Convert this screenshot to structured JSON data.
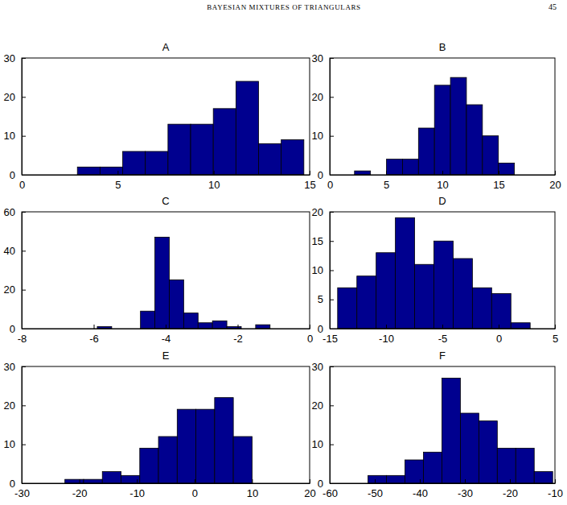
{
  "header": {
    "title": "BAYESIAN MIXTURES OF TRIANGULARS",
    "page": 45
  },
  "chart_data": [
    {
      "type": "histogram",
      "title": "A",
      "color": "#00008f",
      "bins": [
        2.9,
        4.08,
        5.26,
        6.44,
        7.62,
        8.8,
        9.98,
        11.16,
        12.34,
        13.52,
        14.7
      ],
      "counts": [
        2,
        2,
        6,
        6,
        13,
        13,
        17,
        24,
        8,
        9
      ],
      "xlim": [
        0,
        15
      ],
      "xticks": [
        0,
        5,
        10,
        15
      ],
      "ylim": [
        0,
        30
      ],
      "yticks": [
        0,
        10,
        20,
        30
      ]
    },
    {
      "type": "histogram",
      "title": "B",
      "color": "#00008f",
      "bins": [
        2.2,
        3.62,
        5.04,
        6.46,
        7.88,
        9.3,
        10.72,
        12.14,
        13.56,
        14.98,
        16.4
      ],
      "counts": [
        1,
        0,
        4,
        4,
        12,
        23,
        25,
        18,
        10,
        3
      ],
      "xlim": [
        0,
        20
      ],
      "xticks": [
        0,
        5,
        10,
        15,
        20
      ],
      "ylim": [
        0,
        30
      ],
      "yticks": [
        0,
        10,
        20,
        30
      ]
    },
    {
      "type": "histogram",
      "title": "C",
      "color": "#00008f",
      "bins": [
        -5.9,
        -5.5,
        -5.1,
        -4.7,
        -4.3,
        -3.9,
        -3.5,
        -3.1,
        -2.7,
        -2.3,
        -1.9,
        -1.5,
        -1.1
      ],
      "counts": [
        1,
        0,
        0,
        9,
        47,
        25,
        8,
        3,
        4,
        1,
        0,
        2
      ],
      "xlim": [
        -8,
        0
      ],
      "xticks": [
        -8,
        -6,
        -4,
        -2,
        0
      ],
      "ylim": [
        0,
        60
      ],
      "yticks": [
        0,
        20,
        40,
        60
      ]
    },
    {
      "type": "histogram",
      "title": "D",
      "color": "#00008f",
      "bins": [
        -14.3,
        -12.59,
        -10.88,
        -9.17,
        -7.46,
        -5.75,
        -4.04,
        -2.33,
        -0.62,
        1.09,
        2.8
      ],
      "counts": [
        7,
        9,
        13,
        19,
        11,
        15,
        12,
        7,
        6,
        1
      ],
      "xlim": [
        -15,
        5
      ],
      "xticks": [
        -15,
        -10,
        -5,
        0,
        5
      ],
      "ylim": [
        0,
        20
      ],
      "yticks": [
        0,
        5,
        10,
        15,
        20
      ]
    },
    {
      "type": "histogram",
      "title": "E",
      "color": "#00008f",
      "bins": [
        -22.5,
        -19.25,
        -16,
        -12.75,
        -9.5,
        -6.25,
        -3,
        0.25,
        3.5,
        6.75,
        10
      ],
      "counts": [
        1,
        1,
        3,
        2,
        9,
        12,
        19,
        19,
        22,
        12
      ],
      "xlim": [
        -30,
        20
      ],
      "xticks": [
        -30,
        -20,
        -10,
        0,
        10,
        20
      ],
      "ylim": [
        0,
        30
      ],
      "yticks": [
        0,
        10,
        20,
        30
      ]
    },
    {
      "type": "histogram",
      "title": "F",
      "color": "#00008f",
      "bins": [
        -51.5,
        -47.4,
        -43.3,
        -39.2,
        -35.1,
        -31,
        -26.9,
        -22.8,
        -18.7,
        -14.6,
        -10.5
      ],
      "counts": [
        2,
        2,
        6,
        8,
        27,
        18,
        16,
        9,
        9,
        3
      ],
      "xlim": [
        -60,
        -10
      ],
      "xticks": [
        -60,
        -50,
        -40,
        -30,
        -20,
        -10
      ],
      "ylim": [
        0,
        30
      ],
      "yticks": [
        0,
        10,
        20,
        30
      ]
    }
  ]
}
